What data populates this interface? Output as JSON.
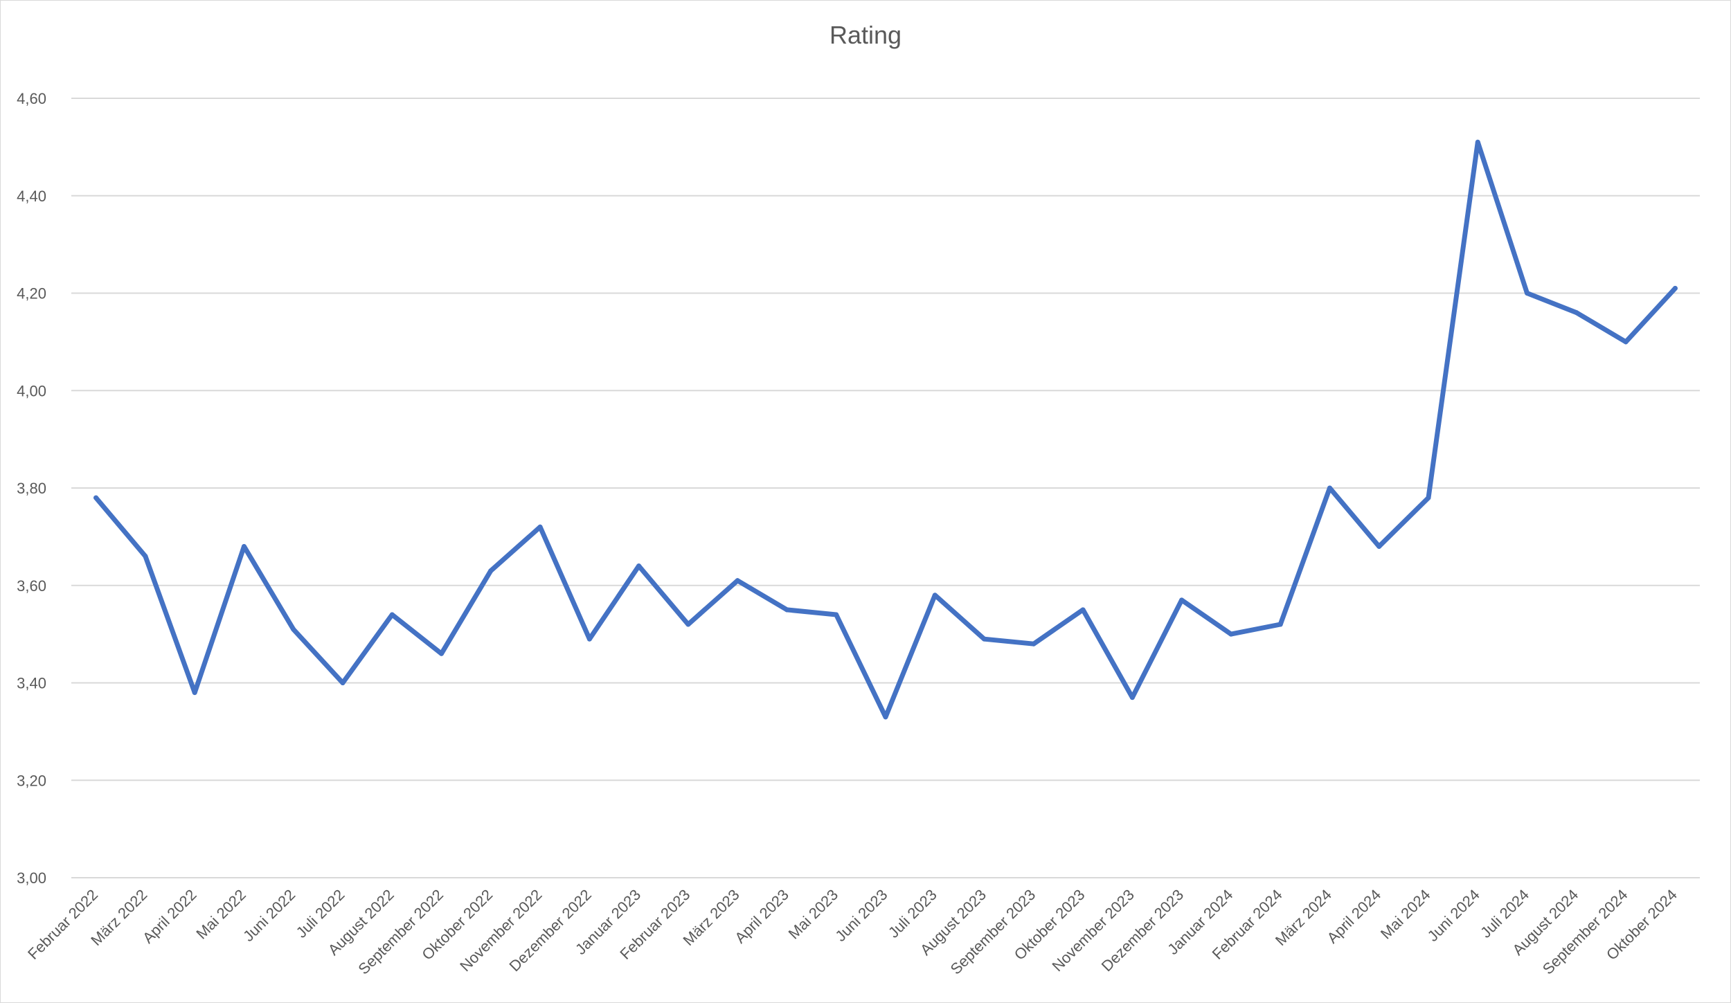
{
  "chart_data": {
    "type": "line",
    "title": "Rating",
    "xlabel": "",
    "ylabel": "",
    "ylim": [
      3.0,
      4.6
    ],
    "yticks": [
      "3,00",
      "3,20",
      "3,40",
      "3,60",
      "3,80",
      "4,00",
      "4,20",
      "4,40",
      "4,60"
    ],
    "grid": true,
    "legend": "none",
    "line_color": "#4472c4",
    "categories": [
      "Februar 2022",
      "März 2022",
      "April 2022",
      "Mai 2022",
      "Juni 2022",
      "Juli 2022",
      "August 2022",
      "September 2022",
      "Oktober 2022",
      "November 2022",
      "Dezember 2022",
      "Januar 2023",
      "Februar 2023",
      "März 2023",
      "April 2023",
      "Mai 2023",
      "Juni 2023",
      "Juli 2023",
      "August 2023",
      "September 2023",
      "Oktober 2023",
      "November 2023",
      "Dezember 2023",
      "Januar 2024",
      "Februar 2024",
      "März 2024",
      "April 2024",
      "Mai 2024",
      "Juni 2024",
      "Juli 2024",
      "August 2024",
      "September 2024",
      "Oktober 2024"
    ],
    "series": [
      {
        "values": [
          3.78,
          3.66,
          3.38,
          3.68,
          3.51,
          3.4,
          3.54,
          3.46,
          3.63,
          3.72,
          3.49,
          3.64,
          3.52,
          3.61,
          3.55,
          3.54,
          3.33,
          3.58,
          3.49,
          3.48,
          3.55,
          3.37,
          3.57,
          3.5,
          3.52,
          3.8,
          3.68,
          3.78,
          4.51,
          4.2,
          4.16,
          4.1,
          4.21
        ]
      }
    ]
  }
}
